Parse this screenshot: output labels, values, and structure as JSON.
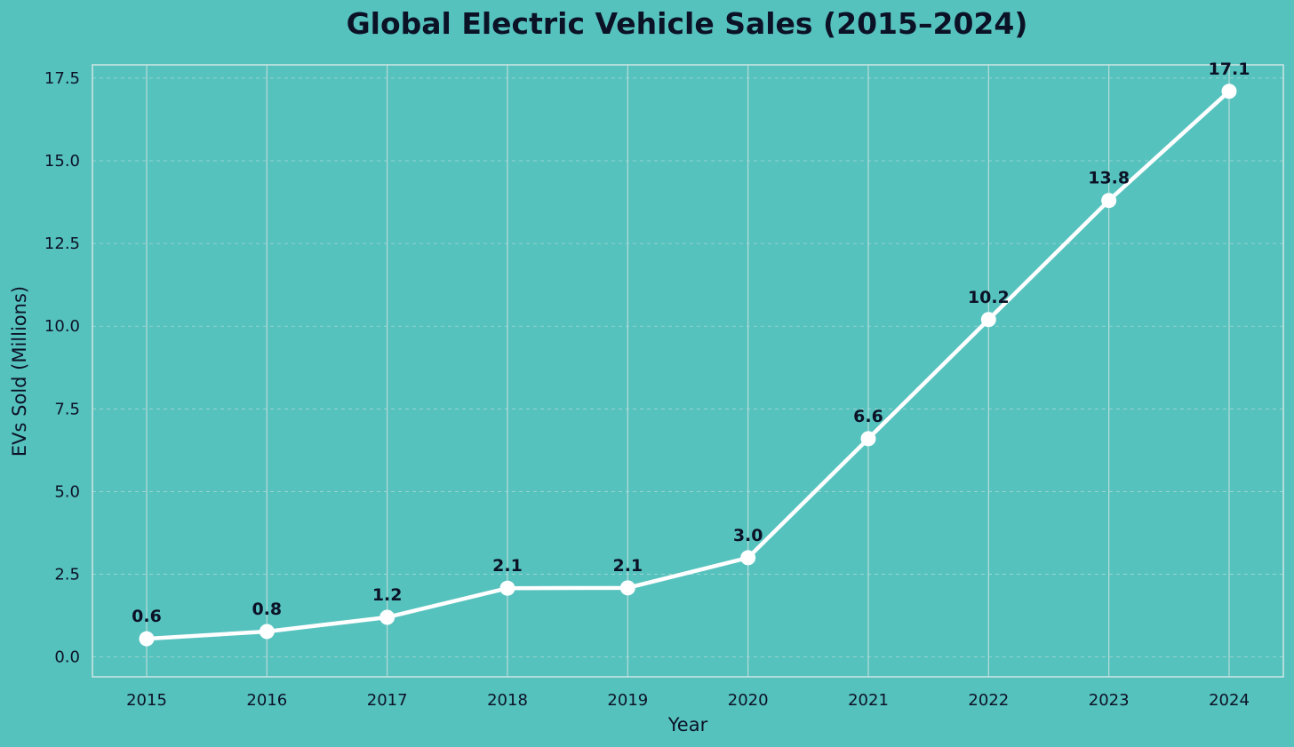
{
  "colors": {
    "background": "#56c2be",
    "line": "#ffffff",
    "text": "#0c1226",
    "grid": "#b9dcd9",
    "frame": "#cfe6e3"
  },
  "chart_data": {
    "type": "line",
    "title": "Global Electric Vehicle Sales (2015–2024)",
    "xlabel": "Year",
    "ylabel": "EVs Sold (Millions)",
    "categories": [
      "2015",
      "2016",
      "2017",
      "2018",
      "2019",
      "2020",
      "2021",
      "2022",
      "2023",
      "2024"
    ],
    "series": [
      {
        "values": [
          0.55,
          0.77,
          1.2,
          2.08,
          2.09,
          3.0,
          6.6,
          10.2,
          13.8,
          17.1
        ],
        "labels": [
          "0.6",
          "0.8",
          "1.2",
          "2.1",
          "2.1",
          "3.0",
          "6.6",
          "10.2",
          "13.8",
          "17.1"
        ]
      }
    ],
    "ylim": [
      -0.6,
      17.9
    ],
    "yticks": [
      "0.0",
      "2.5",
      "5.0",
      "7.5",
      "10.0",
      "12.5",
      "15.0",
      "17.5"
    ],
    "grid": true,
    "legend": "none"
  }
}
